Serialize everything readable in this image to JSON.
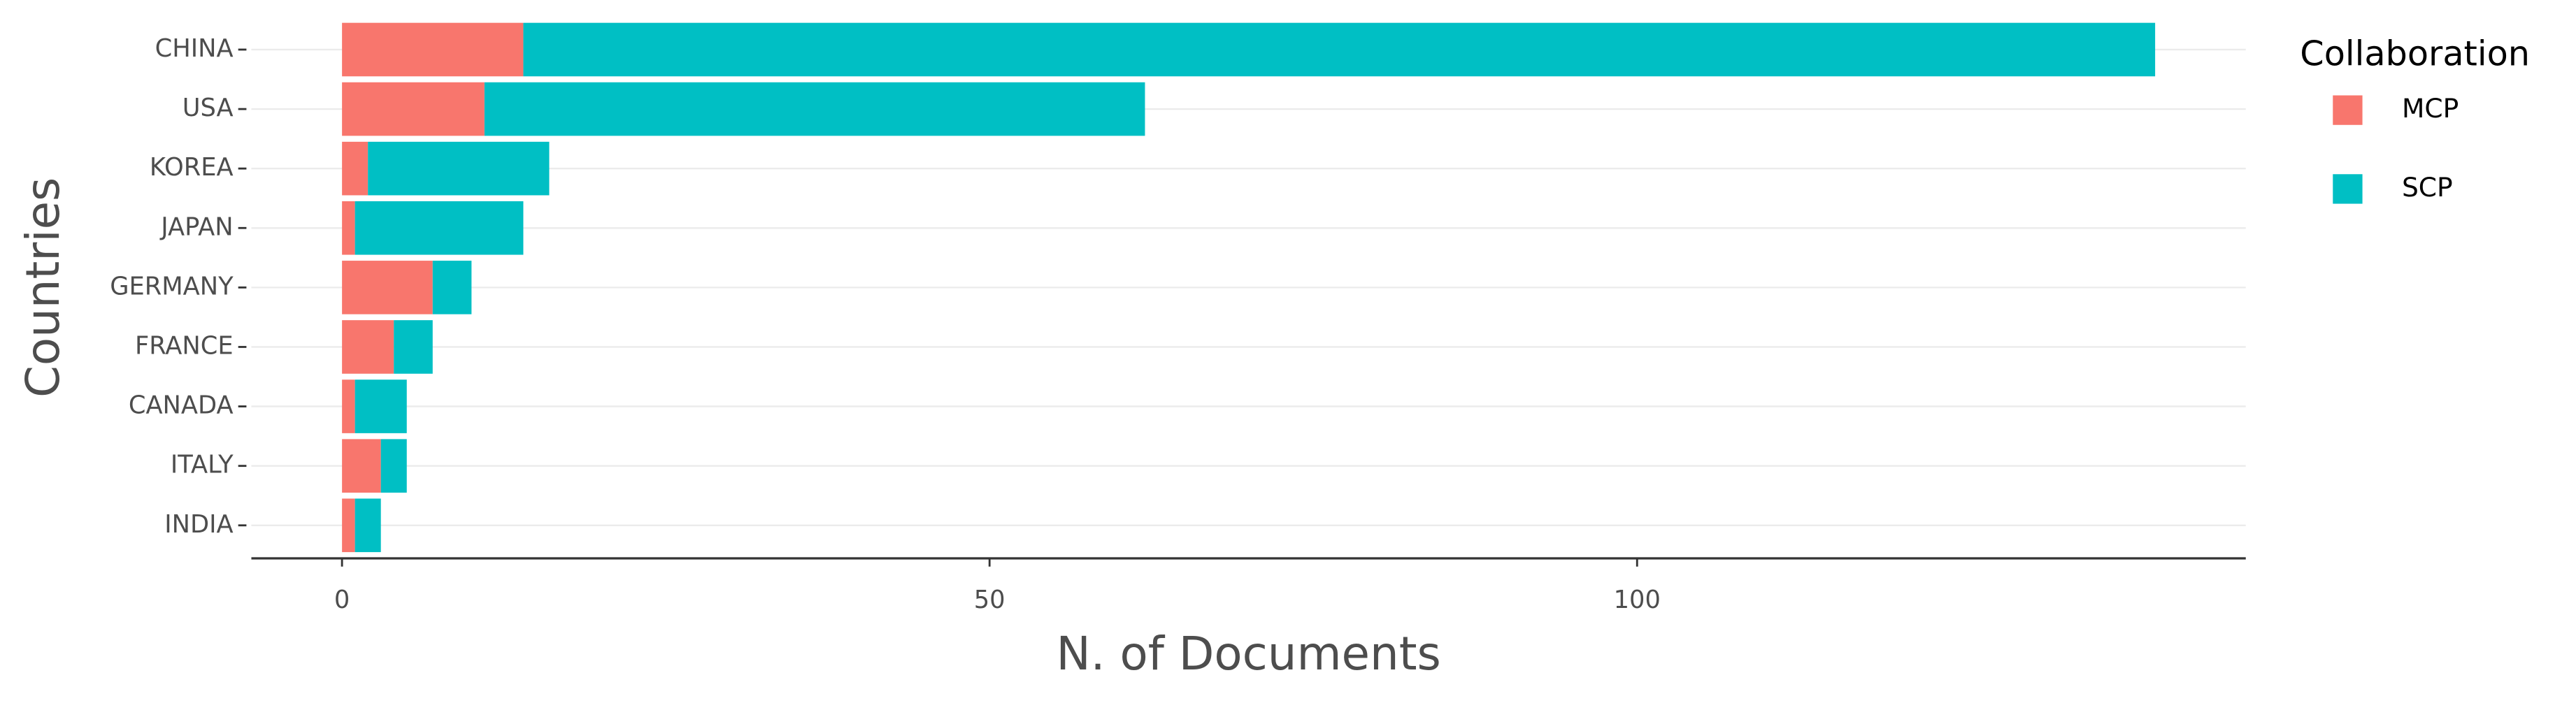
{
  "chart_data": {
    "type": "stacked_bar_horizontal",
    "xlabel": "N. of Documents",
    "ylabel": "Countries",
    "categories": [
      "CHINA",
      "USA",
      "KOREA",
      "JAPAN",
      "GERMANY",
      "FRANCE",
      "CANADA",
      "ITALY",
      "INDIA"
    ],
    "series": [
      {
        "name": "MCP",
        "color": "#F8766D",
        "values": [
          14,
          11,
          2,
          1,
          7,
          4,
          1,
          3,
          1
        ]
      },
      {
        "name": "SCP",
        "color": "#00BFC4",
        "values": [
          126,
          51,
          14,
          13,
          3,
          3,
          4,
          2,
          2
        ]
      }
    ],
    "xlim": [
      -7,
      147
    ],
    "xticks": [
      0,
      50,
      100
    ],
    "legend_title": "Collaboration",
    "legend": "right",
    "grid": true
  }
}
